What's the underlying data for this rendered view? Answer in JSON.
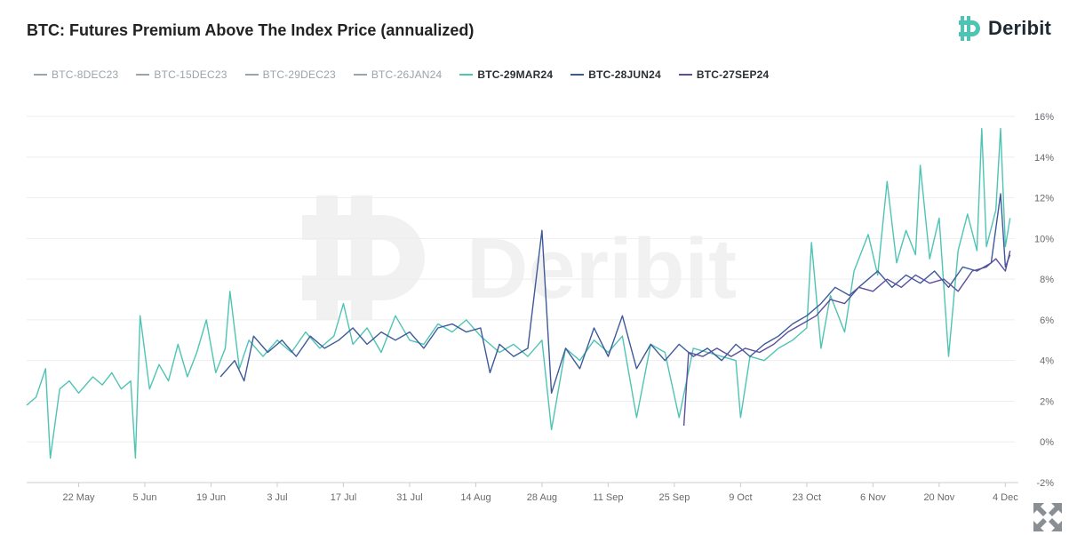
{
  "title": "BTC: Futures Premium Above The Index Price (annualized)",
  "logo_text": "Deribit",
  "watermark_text": "Deribit",
  "colors": {
    "mar24": "#4fc4b4",
    "jun24": "#3c5a9a",
    "sep24": "#5a4f9e",
    "hidden": "#9aa4ab",
    "grid": "#eeeeee",
    "logo": "#4fc4b4"
  },
  "legend": [
    {
      "label": "BTC-8DEC23",
      "state": "hidden",
      "color": "#9aa4ab"
    },
    {
      "label": "BTC-15DEC23",
      "state": "hidden",
      "color": "#9aa4ab"
    },
    {
      "label": "BTC-29DEC23",
      "state": "hidden",
      "color": "#9aa4ab"
    },
    {
      "label": "BTC-26JAN24",
      "state": "hidden",
      "color": "#9aa4ab"
    },
    {
      "label": "BTC-29MAR24",
      "state": "shown",
      "color": "#4fc4b4"
    },
    {
      "label": "BTC-28JUN24",
      "state": "shown",
      "color": "#3c5a9a"
    },
    {
      "label": "BTC-27SEP24",
      "state": "shown",
      "color": "#5a4f9e"
    }
  ],
  "chart_data": {
    "type": "line",
    "title": "BTC: Futures Premium Above The Index Price (annualized)",
    "xlabel": "",
    "ylabel": "",
    "x_ticks": [
      "22 May",
      "5 Jun",
      "19 Jun",
      "3 Jul",
      "17 Jul",
      "31 Jul",
      "14 Aug",
      "28 Aug",
      "11 Sep",
      "25 Sep",
      "9 Oct",
      "23 Oct",
      "6 Nov",
      "20 Nov",
      "4 Dec"
    ],
    "x_range": [
      "2023-05-11",
      "2023-12-06"
    ],
    "y_ticks": [
      "16%",
      "14%",
      "12%",
      "10%",
      "8%",
      "6%",
      "4%",
      "2%",
      "0%",
      "-2%"
    ],
    "ylim": [
      -2,
      16
    ],
    "y_axis_position": "right",
    "grid": true,
    "legend_position": "top-left",
    "series": [
      {
        "name": "BTC-29MAR24",
        "points": [
          [
            "2023-05-11",
            1.8
          ],
          [
            "2023-05-13",
            2.2
          ],
          [
            "2023-05-15",
            3.6
          ],
          [
            "2023-05-16",
            -0.8
          ],
          [
            "2023-05-18",
            2.6
          ],
          [
            "2023-05-20",
            3.0
          ],
          [
            "2023-05-22",
            2.4
          ],
          [
            "2023-05-25",
            3.2
          ],
          [
            "2023-05-27",
            2.8
          ],
          [
            "2023-05-29",
            3.4
          ],
          [
            "2023-05-31",
            2.6
          ],
          [
            "2023-06-02",
            3.0
          ],
          [
            "2023-06-03",
            -0.8
          ],
          [
            "2023-06-04",
            6.2
          ],
          [
            "2023-06-06",
            2.6
          ],
          [
            "2023-06-08",
            3.8
          ],
          [
            "2023-06-10",
            3.0
          ],
          [
            "2023-06-12",
            4.8
          ],
          [
            "2023-06-14",
            3.2
          ],
          [
            "2023-06-16",
            4.4
          ],
          [
            "2023-06-18",
            6.0
          ],
          [
            "2023-06-20",
            3.4
          ],
          [
            "2023-06-22",
            4.6
          ],
          [
            "2023-06-23",
            7.4
          ],
          [
            "2023-06-25",
            3.6
          ],
          [
            "2023-06-27",
            5.0
          ],
          [
            "2023-06-30",
            4.2
          ],
          [
            "2023-07-03",
            5.0
          ],
          [
            "2023-07-06",
            4.4
          ],
          [
            "2023-07-09",
            5.4
          ],
          [
            "2023-07-12",
            4.6
          ],
          [
            "2023-07-15",
            5.2
          ],
          [
            "2023-07-17",
            6.8
          ],
          [
            "2023-07-19",
            4.8
          ],
          [
            "2023-07-22",
            5.6
          ],
          [
            "2023-07-25",
            4.4
          ],
          [
            "2023-07-28",
            6.2
          ],
          [
            "2023-07-31",
            5.0
          ],
          [
            "2023-08-03",
            4.8
          ],
          [
            "2023-08-06",
            5.8
          ],
          [
            "2023-08-09",
            5.4
          ],
          [
            "2023-08-12",
            6.0
          ],
          [
            "2023-08-15",
            5.2
          ],
          [
            "2023-08-17",
            4.8
          ],
          [
            "2023-08-19",
            4.4
          ],
          [
            "2023-08-22",
            4.8
          ],
          [
            "2023-08-25",
            4.2
          ],
          [
            "2023-08-28",
            5.0
          ],
          [
            "2023-08-30",
            0.6
          ],
          [
            "2023-09-02",
            4.6
          ],
          [
            "2023-09-05",
            4.0
          ],
          [
            "2023-09-08",
            5.0
          ],
          [
            "2023-09-11",
            4.4
          ],
          [
            "2023-09-14",
            5.2
          ],
          [
            "2023-09-17",
            1.2
          ],
          [
            "2023-09-20",
            4.8
          ],
          [
            "2023-09-23",
            4.4
          ],
          [
            "2023-09-26",
            1.2
          ],
          [
            "2023-09-29",
            4.6
          ],
          [
            "2023-10-02",
            4.4
          ],
          [
            "2023-10-05",
            4.2
          ],
          [
            "2023-10-08",
            4.0
          ],
          [
            "2023-10-09",
            1.2
          ],
          [
            "2023-10-11",
            4.2
          ],
          [
            "2023-10-14",
            4.0
          ],
          [
            "2023-10-17",
            4.6
          ],
          [
            "2023-10-20",
            5.0
          ],
          [
            "2023-10-23",
            5.6
          ],
          [
            "2023-10-24",
            9.8
          ],
          [
            "2023-10-26",
            4.6
          ],
          [
            "2023-10-28",
            7.2
          ],
          [
            "2023-10-31",
            5.4
          ],
          [
            "2023-11-02",
            8.4
          ],
          [
            "2023-11-05",
            10.2
          ],
          [
            "2023-11-07",
            8.2
          ],
          [
            "2023-11-09",
            12.8
          ],
          [
            "2023-11-11",
            8.8
          ],
          [
            "2023-11-13",
            10.4
          ],
          [
            "2023-11-15",
            9.2
          ],
          [
            "2023-11-16",
            13.6
          ],
          [
            "2023-11-18",
            9.0
          ],
          [
            "2023-11-20",
            11.0
          ],
          [
            "2023-11-22",
            4.2
          ],
          [
            "2023-11-24",
            9.4
          ],
          [
            "2023-11-26",
            11.2
          ],
          [
            "2023-11-28",
            9.4
          ],
          [
            "2023-11-29",
            15.4
          ],
          [
            "2023-11-30",
            9.6
          ],
          [
            "2023-12-02",
            11.4
          ],
          [
            "2023-12-03",
            15.4
          ],
          [
            "2023-12-04",
            9.6
          ],
          [
            "2023-12-05",
            11.0
          ]
        ]
      },
      {
        "name": "BTC-28JUN24",
        "points": [
          [
            "2023-06-21",
            3.2
          ],
          [
            "2023-06-24",
            4.0
          ],
          [
            "2023-06-26",
            3.0
          ],
          [
            "2023-06-28",
            5.2
          ],
          [
            "2023-07-01",
            4.4
          ],
          [
            "2023-07-04",
            5.0
          ],
          [
            "2023-07-07",
            4.2
          ],
          [
            "2023-07-10",
            5.2
          ],
          [
            "2023-07-13",
            4.6
          ],
          [
            "2023-07-16",
            5.0
          ],
          [
            "2023-07-19",
            5.6
          ],
          [
            "2023-07-22",
            4.8
          ],
          [
            "2023-07-25",
            5.4
          ],
          [
            "2023-07-28",
            5.0
          ],
          [
            "2023-07-31",
            5.4
          ],
          [
            "2023-08-03",
            4.6
          ],
          [
            "2023-08-06",
            5.6
          ],
          [
            "2023-08-09",
            5.8
          ],
          [
            "2023-08-12",
            5.4
          ],
          [
            "2023-08-15",
            5.6
          ],
          [
            "2023-08-17",
            3.4
          ],
          [
            "2023-08-19",
            4.8
          ],
          [
            "2023-08-22",
            4.2
          ],
          [
            "2023-08-25",
            4.6
          ],
          [
            "2023-08-28",
            10.4
          ],
          [
            "2023-08-30",
            2.4
          ],
          [
            "2023-09-02",
            4.6
          ],
          [
            "2023-09-05",
            3.6
          ],
          [
            "2023-09-08",
            5.6
          ],
          [
            "2023-09-11",
            4.2
          ],
          [
            "2023-09-14",
            6.2
          ],
          [
            "2023-09-17",
            3.6
          ],
          [
            "2023-09-20",
            4.8
          ],
          [
            "2023-09-23",
            4.0
          ],
          [
            "2023-09-26",
            4.8
          ],
          [
            "2023-09-29",
            4.2
          ],
          [
            "2023-10-02",
            4.6
          ],
          [
            "2023-10-05",
            4.0
          ],
          [
            "2023-10-08",
            4.8
          ],
          [
            "2023-10-11",
            4.2
          ],
          [
            "2023-10-14",
            4.8
          ],
          [
            "2023-10-17",
            5.2
          ],
          [
            "2023-10-20",
            5.8
          ],
          [
            "2023-10-23",
            6.2
          ],
          [
            "2023-10-26",
            6.8
          ],
          [
            "2023-10-29",
            7.6
          ],
          [
            "2023-11-01",
            7.2
          ],
          [
            "2023-11-04",
            7.8
          ],
          [
            "2023-11-07",
            8.4
          ],
          [
            "2023-11-10",
            7.6
          ],
          [
            "2023-11-13",
            8.2
          ],
          [
            "2023-11-16",
            7.8
          ],
          [
            "2023-11-19",
            8.4
          ],
          [
            "2023-11-22",
            7.6
          ],
          [
            "2023-11-25",
            8.6
          ],
          [
            "2023-11-28",
            8.4
          ],
          [
            "2023-12-01",
            8.8
          ],
          [
            "2023-12-03",
            12.2
          ],
          [
            "2023-12-04",
            8.6
          ],
          [
            "2023-12-05",
            9.2
          ]
        ]
      },
      {
        "name": "BTC-27SEP24",
        "points": [
          [
            "2023-09-27",
            0.8
          ],
          [
            "2023-09-28",
            4.4
          ],
          [
            "2023-10-01",
            4.2
          ],
          [
            "2023-10-04",
            4.6
          ],
          [
            "2023-10-07",
            4.2
          ],
          [
            "2023-10-10",
            4.6
          ],
          [
            "2023-10-13",
            4.4
          ],
          [
            "2023-10-16",
            4.8
          ],
          [
            "2023-10-19",
            5.4
          ],
          [
            "2023-10-22",
            5.8
          ],
          [
            "2023-10-25",
            6.2
          ],
          [
            "2023-10-28",
            7.0
          ],
          [
            "2023-10-31",
            6.8
          ],
          [
            "2023-11-03",
            7.6
          ],
          [
            "2023-11-06",
            7.4
          ],
          [
            "2023-11-09",
            8.0
          ],
          [
            "2023-11-12",
            7.6
          ],
          [
            "2023-11-15",
            8.2
          ],
          [
            "2023-11-18",
            7.8
          ],
          [
            "2023-11-21",
            8.0
          ],
          [
            "2023-11-24",
            7.4
          ],
          [
            "2023-11-27",
            8.4
          ],
          [
            "2023-11-30",
            8.6
          ],
          [
            "2023-12-02",
            9.0
          ],
          [
            "2023-12-04",
            8.4
          ],
          [
            "2023-12-05",
            9.4
          ]
        ]
      }
    ]
  }
}
